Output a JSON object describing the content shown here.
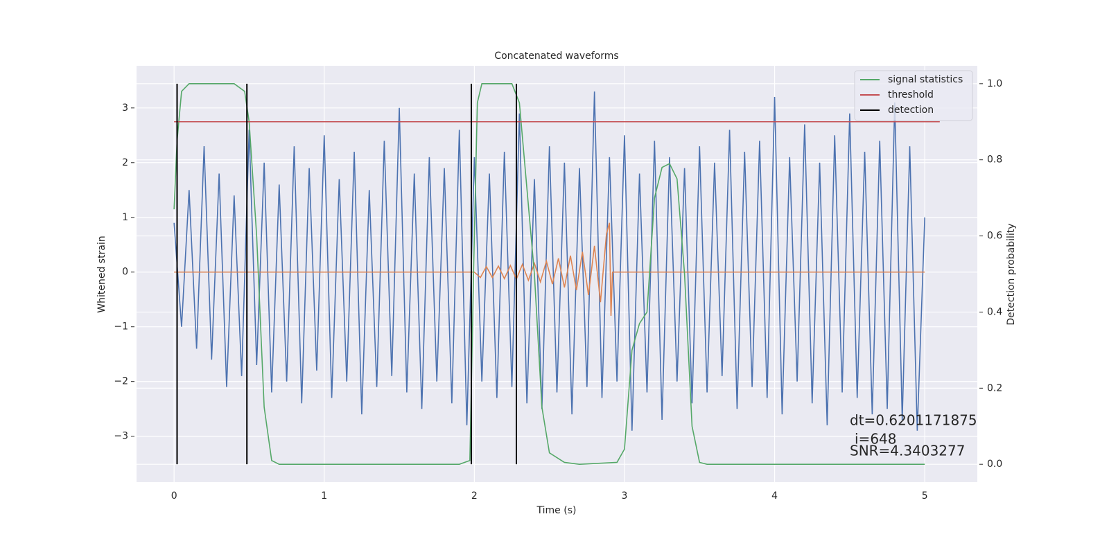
{
  "chart_data": {
    "type": "line",
    "title": "Concatenated waveforms",
    "xlabel": "Time (s)",
    "ylabel": "Whitened strain",
    "y2label": "Detection probability",
    "xlim": [
      -0.25,
      5.35
    ],
    "ylim": [
      -3.84,
      3.77
    ],
    "y2lim": [
      -0.047,
      1.047
    ],
    "xticks": [
      0,
      1,
      2,
      3,
      4,
      5
    ],
    "yticks": [
      {
        "value": -3,
        "label": "−3"
      },
      {
        "value": -2,
        "label": "−2"
      },
      {
        "value": -1,
        "label": "−1"
      },
      0,
      1,
      2,
      3
    ],
    "y2ticks": [
      {
        "value": 0,
        "label": "0.0"
      },
      0.2,
      0.4,
      0.6,
      0.8,
      {
        "value": 1,
        "label": "1.0"
      }
    ],
    "grid": true,
    "legend": "upper right",
    "series": [
      {
        "color": "#4c72b0",
        "x": [
          0,
          0.05,
          0.1,
          0.15,
          0.2,
          0.25,
          0.3,
          0.35,
          0.4,
          0.45,
          0.5,
          0.55,
          0.6,
          0.65,
          0.7,
          0.75,
          0.8,
          0.85,
          0.9,
          0.95,
          1,
          1.05,
          1.1,
          1.15,
          1.2,
          1.25,
          1.3,
          1.35,
          1.4,
          1.45,
          1.5,
          1.55,
          1.6,
          1.65,
          1.7,
          1.75,
          1.8,
          1.85,
          1.9,
          1.95,
          2,
          2.05,
          2.1,
          2.15,
          2.2,
          2.25,
          2.3,
          2.35,
          2.4,
          2.45,
          2.5,
          2.55,
          2.6,
          2.65,
          2.7,
          2.75,
          2.8,
          2.85,
          2.9,
          2.95,
          3,
          3.05,
          3.1,
          3.15,
          3.2,
          3.25,
          3.3,
          3.35,
          3.4,
          3.45,
          3.5,
          3.55,
          3.6,
          3.65,
          3.7,
          3.75,
          3.8,
          3.85,
          3.9,
          3.95,
          4,
          4.05,
          4.1,
          4.15,
          4.2,
          4.25,
          4.3,
          4.35,
          4.4,
          4.45,
          4.5,
          4.55,
          4.6,
          4.65,
          4.7,
          4.75,
          4.8,
          4.85,
          4.9,
          4.95,
          5
        ],
        "values": [
          0.9,
          -1.0,
          1.5,
          -1.4,
          2.3,
          -1.6,
          1.8,
          -2.1,
          1.4,
          -1.9,
          2.6,
          -1.7,
          2.0,
          -2.2,
          1.6,
          -2.0,
          2.3,
          -2.4,
          1.9,
          -1.8,
          2.5,
          -2.3,
          1.7,
          -2.0,
          2.2,
          -2.6,
          1.5,
          -2.1,
          2.4,
          -1.9,
          3.0,
          -2.2,
          1.8,
          -2.5,
          2.1,
          -2.0,
          1.9,
          -2.4,
          2.6,
          -2.8,
          2.1,
          -2.0,
          1.8,
          -2.3,
          2.2,
          -2.1,
          2.9,
          -2.4,
          1.7,
          -2.5,
          2.3,
          -2.2,
          2.0,
          -2.6,
          1.9,
          -2.1,
          3.3,
          -2.3,
          2.1,
          -2.0,
          2.5,
          -2.9,
          1.8,
          -2.2,
          2.4,
          -2.7,
          2.1,
          -2.0,
          1.9,
          -2.4,
          2.3,
          -2.2,
          2.0,
          -1.9,
          2.6,
          -2.5,
          2.2,
          -2.1,
          2.4,
          -2.3,
          3.2,
          -2.6,
          2.1,
          -2.0,
          2.7,
          -2.4,
          2.0,
          -2.8,
          2.5,
          -2.2,
          2.9,
          -2.3,
          2.2,
          -2.6,
          2.4,
          -2.5,
          3.1,
          -2.7,
          2.3,
          -2.9,
          1.0
        ]
      },
      {
        "color": "#dd8452",
        "x": [
          0,
          2.0,
          2.04,
          2.08,
          2.12,
          2.16,
          2.2,
          2.24,
          2.28,
          2.32,
          2.36,
          2.4,
          2.44,
          2.48,
          2.52,
          2.56,
          2.6,
          2.64,
          2.68,
          2.72,
          2.76,
          2.8,
          2.84,
          2.88,
          2.9,
          2.91,
          2.92,
          5.0
        ],
        "values": [
          0,
          0,
          -0.1,
          0.1,
          -0.1,
          0.11,
          -0.12,
          0.12,
          -0.13,
          0.14,
          -0.15,
          0.16,
          -0.18,
          0.2,
          -0.22,
          0.25,
          -0.28,
          0.3,
          -0.33,
          0.37,
          -0.42,
          0.48,
          -0.55,
          0.7,
          0.9,
          -0.8,
          0,
          0
        ]
      },
      {
        "name": "signal statistics",
        "color": "#55a868",
        "axis": "y2",
        "x": [
          0,
          0.02,
          0.05,
          0.1,
          0.4,
          0.47,
          0.5,
          0.55,
          0.6,
          0.65,
          0.7,
          1.9,
          1.97,
          2.0,
          2.02,
          2.05,
          2.25,
          2.3,
          2.4,
          2.45,
          2.5,
          2.6,
          2.7,
          2.95,
          3.0,
          3.05,
          3.1,
          3.15,
          3.2,
          3.25,
          3.3,
          3.35,
          3.4,
          3.45,
          3.5,
          3.55,
          5.0
        ],
        "values": [
          0.67,
          0.85,
          0.98,
          1.0,
          1.0,
          0.98,
          0.9,
          0.6,
          0.15,
          0.01,
          0,
          0,
          0.01,
          0.6,
          0.95,
          1.0,
          1.0,
          0.95,
          0.5,
          0.15,
          0.03,
          0.005,
          0,
          0.005,
          0.04,
          0.3,
          0.37,
          0.4,
          0.7,
          0.78,
          0.79,
          0.75,
          0.5,
          0.1,
          0.005,
          0,
          0
        ]
      },
      {
        "name": "threshold",
        "color": "#c44e52",
        "axis": "y2",
        "x": [
          0,
          5.1
        ],
        "values": [
          0.9,
          0.9
        ]
      },
      {
        "name": "detection",
        "color": "#000000",
        "axis": "y2",
        "x": [
          0.02,
          0.02,
          null,
          0.485,
          0.485,
          null,
          1.98,
          1.98,
          null,
          2.28,
          2.28
        ],
        "values": [
          0,
          1,
          null,
          0,
          1,
          null,
          0,
          1,
          null,
          0,
          1
        ]
      }
    ],
    "annotations": [
      "dt=0.6201171875",
      "i=648",
      "SNR=4.3403277"
    ]
  }
}
